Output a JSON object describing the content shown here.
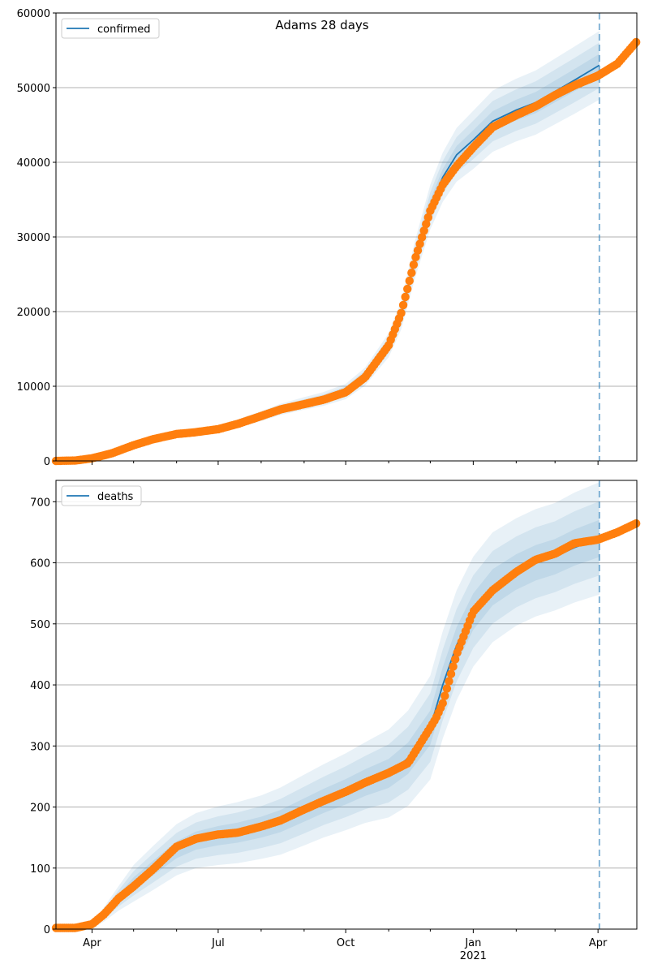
{
  "figure": {
    "title": "Adams 28 days",
    "colors": {
      "model": "#1f77b4",
      "observed": "#ff7f0e",
      "band": "#1f77b4",
      "grid": "#b0b0b0",
      "forecast_line": "#1f77b4"
    }
  },
  "chart_data": [
    {
      "type": "line",
      "legend": [
        "confirmed"
      ],
      "legend_position": "top-left",
      "grid": "y",
      "ylim": [
        0,
        60000
      ],
      "yticks": [
        0,
        10000,
        20000,
        30000,
        40000,
        50000,
        60000
      ],
      "ytick_labels": [
        "0",
        "10000",
        "20000",
        "30000",
        "40000",
        "50000",
        "60000"
      ],
      "xlim": [
        "2020-03-06",
        "2021-04-29"
      ],
      "forecast_start": "2021-04-02",
      "series": [
        {
          "name": "confirmed",
          "kind": "model",
          "x": [
            "2020-03-06",
            "2020-03-20",
            "2020-04-01",
            "2020-04-15",
            "2020-05-01",
            "2020-05-15",
            "2020-06-01",
            "2020-06-15",
            "2020-07-01",
            "2020-07-15",
            "2020-08-01",
            "2020-08-15",
            "2020-09-01",
            "2020-09-15",
            "2020-10-01",
            "2020-10-15",
            "2020-11-01",
            "2020-11-10",
            "2020-11-20",
            "2020-12-01",
            "2020-12-10",
            "2020-12-20",
            "2021-01-01",
            "2021-01-15",
            "2021-02-01",
            "2021-02-15",
            "2021-03-01",
            "2021-03-15",
            "2021-04-02"
          ],
          "y": [
            0,
            60,
            400,
            1100,
            2200,
            3000,
            3600,
            3900,
            4300,
            5000,
            6000,
            6900,
            7700,
            8300,
            9300,
            11300,
            15500,
            19500,
            27000,
            34000,
            38000,
            41000,
            43000,
            45500,
            47000,
            48000,
            49500,
            51000,
            53000
          ],
          "band_width": [
            0,
            10,
            60,
            150,
            250,
            320,
            380,
            430,
            480,
            560,
            660,
            750,
            840,
            920,
            1020,
            1200,
            1600,
            1900,
            2500,
            3000,
            3300,
            3600,
            3900,
            4100,
            4200,
            4300,
            4400,
            4500,
            4600
          ]
        },
        {
          "name": "",
          "kind": "observed",
          "x": [
            "2020-03-06",
            "2020-03-20",
            "2020-04-01",
            "2020-04-15",
            "2020-05-01",
            "2020-05-15",
            "2020-06-01",
            "2020-06-15",
            "2020-07-01",
            "2020-07-15",
            "2020-08-01",
            "2020-08-15",
            "2020-09-01",
            "2020-09-15",
            "2020-10-01",
            "2020-10-15",
            "2020-11-01",
            "2020-11-10",
            "2020-11-20",
            "2020-12-01",
            "2020-12-10",
            "2020-12-20",
            "2021-01-01",
            "2021-01-15",
            "2021-02-01",
            "2021-02-15",
            "2021-03-01",
            "2021-03-15",
            "2021-04-01",
            "2021-04-15",
            "2021-04-29"
          ],
          "y": [
            0,
            50,
            350,
            1000,
            2100,
            2900,
            3600,
            3850,
            4250,
            4950,
            6000,
            6900,
            7600,
            8200,
            9200,
            11200,
            15500,
            19800,
            27000,
            33500,
            37000,
            39500,
            42000,
            44700,
            46300,
            47500,
            49000,
            50300,
            51600,
            53200,
            56200
          ]
        }
      ]
    },
    {
      "type": "line",
      "legend": [
        "deaths"
      ],
      "legend_position": "top-left",
      "grid": "y",
      "ylim": [
        0,
        735
      ],
      "yticks": [
        0,
        100,
        200,
        300,
        400,
        500,
        600,
        700
      ],
      "ytick_labels": [
        "0",
        "100",
        "200",
        "300",
        "400",
        "500",
        "600",
        "700"
      ],
      "xlim": [
        "2020-03-06",
        "2021-04-29"
      ],
      "xticks": [
        "2020-04-01",
        "2020-07-01",
        "2020-10-01",
        "2021-01-01",
        "2021-04-01"
      ],
      "xtick_labels": [
        "Apr",
        "Jul",
        "Oct",
        "Jan",
        "Apr"
      ],
      "xtick_year_label": "2021",
      "forecast_start": "2021-04-02",
      "series": [
        {
          "name": "deaths",
          "kind": "model",
          "x": [
            "2020-03-06",
            "2020-03-20",
            "2020-04-01",
            "2020-04-10",
            "2020-04-20",
            "2020-05-01",
            "2020-05-15",
            "2020-06-01",
            "2020-06-15",
            "2020-07-01",
            "2020-07-15",
            "2020-08-01",
            "2020-08-15",
            "2020-09-01",
            "2020-09-15",
            "2020-10-01",
            "2020-10-15",
            "2020-11-01",
            "2020-11-15",
            "2020-12-01",
            "2020-12-10",
            "2020-12-20",
            "2021-01-01",
            "2021-01-15",
            "2021-02-01",
            "2021-02-15",
            "2021-03-01",
            "2021-03-15",
            "2021-04-02"
          ],
          "y": [
            0,
            0,
            5,
            25,
            50,
            75,
            100,
            130,
            145,
            153,
            158,
            167,
            177,
            195,
            210,
            225,
            240,
            255,
            280,
            330,
            400,
            465,
            520,
            560,
            585,
            600,
            610,
            625,
            640
          ],
          "band_width": [
            0,
            0,
            4,
            12,
            20,
            30,
            36,
            42,
            45,
            48,
            50,
            52,
            55,
            58,
            60,
            63,
            66,
            72,
            78,
            85,
            88,
            90,
            90,
            90,
            88,
            88,
            88,
            90,
            92
          ]
        },
        {
          "name": "",
          "kind": "observed",
          "x": [
            "2020-03-06",
            "2020-03-20",
            "2020-04-01",
            "2020-04-10",
            "2020-04-20",
            "2020-05-01",
            "2020-05-15",
            "2020-06-01",
            "2020-06-15",
            "2020-07-01",
            "2020-07-15",
            "2020-08-01",
            "2020-08-15",
            "2020-09-01",
            "2020-09-15",
            "2020-10-01",
            "2020-10-15",
            "2020-11-01",
            "2020-11-15",
            "2020-12-01",
            "2020-12-05",
            "2020-12-10",
            "2020-12-20",
            "2021-01-01",
            "2021-01-15",
            "2021-02-01",
            "2021-02-15",
            "2021-03-01",
            "2021-03-15",
            "2021-04-01",
            "2021-04-15",
            "2021-04-29"
          ],
          "y": [
            2,
            2,
            8,
            25,
            50,
            70,
            98,
            135,
            148,
            155,
            158,
            168,
            178,
            196,
            210,
            225,
            240,
            256,
            272,
            330,
            345,
            370,
            450,
            520,
            555,
            585,
            605,
            615,
            632,
            638,
            650,
            665
          ]
        }
      ]
    }
  ]
}
